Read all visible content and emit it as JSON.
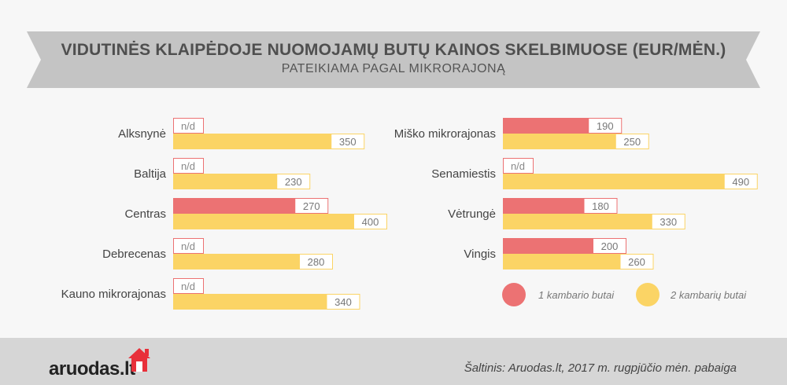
{
  "title": "VIDUTINĖS KLAIPĖDOJE NUOMOJAMŲ BUTŲ KAINOS SKELBIMUOSE (EUR/MĖN.)",
  "subtitle": "PATEIKIAMA PAGAL MIKRORAJONĄ",
  "colors": {
    "one_room": "#ec7273",
    "two_room": "#fbd465",
    "banner": "#c4c4c4",
    "footer": "#d6d6d6"
  },
  "legend": {
    "one_room": "1 kambario butai",
    "two_room": "2 kambarių butai"
  },
  "na_label": "n/d",
  "footer": {
    "logo_main": "aruodas",
    "logo_tld": ".lt",
    "logo_icon": "house-icon",
    "source": "Šaltinis: Aruodas.lt, 2017 m. rugpjūčio mėn. pabaiga"
  },
  "chart_data": {
    "type": "bar",
    "orientation": "horizontal",
    "xlim": [
      0,
      490
    ],
    "series_names": [
      "1 kambario butai",
      "2 kambarių butai"
    ],
    "groups": [
      {
        "label": "Alksnynė",
        "one_room": null,
        "two_room": 350
      },
      {
        "label": "Baltija",
        "one_room": null,
        "two_room": 230
      },
      {
        "label": "Centras",
        "one_room": 270,
        "two_room": 400
      },
      {
        "label": "Debrecenas",
        "one_room": null,
        "two_room": 280
      },
      {
        "label": "Kauno mikrorajonas",
        "one_room": null,
        "two_room": 340
      },
      {
        "label": "Miško mikrorajonas",
        "one_room": 190,
        "two_room": 250
      },
      {
        "label": "Senamiestis",
        "one_room": null,
        "two_room": 490
      },
      {
        "label": "Vėtrungė",
        "one_room": 180,
        "two_room": 330
      },
      {
        "label": "Vingis",
        "one_room": 200,
        "two_room": 260
      }
    ]
  }
}
